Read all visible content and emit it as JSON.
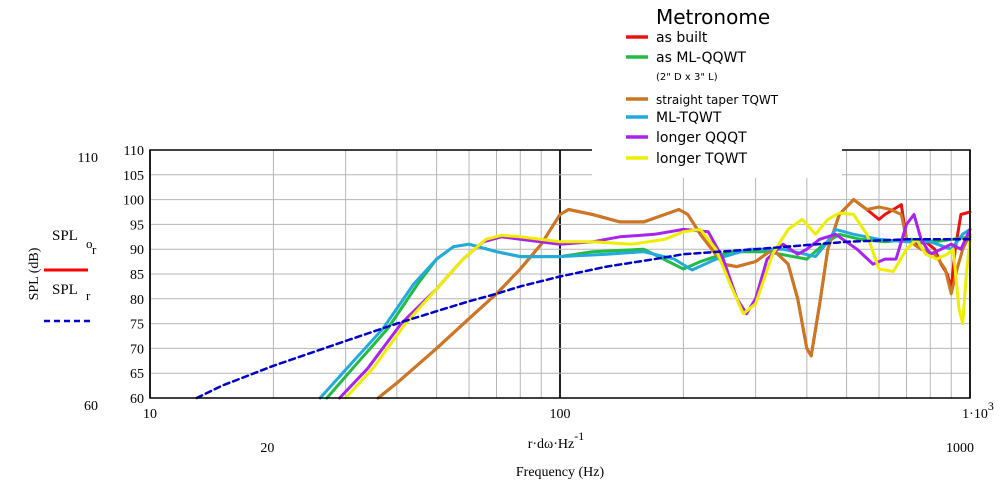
{
  "chart_data": {
    "type": "line",
    "title": "Metronome",
    "xlabel": "Frequency (Hz)",
    "xlabel_expr": "r·dω·Hz",
    "xlabel_exp": "-1",
    "ylabel": "SPL (dB)",
    "x_scale": "log",
    "xlim": [
      10,
      1000
    ],
    "ylim": [
      60,
      110
    ],
    "grid": true,
    "legend_position": "top-right",
    "x_ticks": [
      {
        "value": 10,
        "label": "10"
      },
      {
        "value": 100,
        "label": "100"
      },
      {
        "value": 1000,
        "label": "1·10",
        "exp": "3"
      }
    ],
    "x_secondary_ticks": [
      {
        "value": 20,
        "label": "20"
      },
      {
        "value": 1000,
        "label": "1000"
      }
    ],
    "y_ticks": [
      60,
      65,
      70,
      75,
      80,
      85,
      90,
      95,
      100,
      105,
      110
    ],
    "y_tick_labels": [
      "60",
      "65",
      "70",
      "75",
      "80",
      "85",
      "90",
      "95",
      "100",
      "105",
      "110"
    ],
    "y_outer_labels": [
      {
        "value": 110,
        "label": "110"
      },
      {
        "value": 60,
        "label": "60"
      }
    ],
    "left_legend": [
      {
        "base": "SPL",
        "sub": "o",
        "sub2": "r",
        "color": "#ff0000",
        "style": "solid"
      },
      {
        "base": "SPL",
        "sub": "r",
        "sub2": "",
        "color": "#0000cc",
        "style": "dashed"
      }
    ],
    "legend_note": "(2\" D x 3\" L)",
    "series": [
      {
        "name": "as built",
        "color": "#ee1111",
        "width": 3,
        "points": [
          [
            36,
            60
          ],
          [
            40,
            63
          ],
          [
            50,
            70
          ],
          [
            60,
            76
          ],
          [
            70,
            81
          ],
          [
            80,
            86
          ],
          [
            90,
            91
          ],
          [
            100,
            97
          ],
          [
            105,
            98
          ],
          [
            120,
            97
          ],
          [
            140,
            95.5
          ],
          [
            160,
            95.5
          ],
          [
            180,
            97
          ],
          [
            195,
            98
          ],
          [
            205,
            97
          ],
          [
            220,
            93
          ],
          [
            250,
            87
          ],
          [
            270,
            86.5
          ],
          [
            300,
            87.5
          ],
          [
            330,
            90
          ],
          [
            360,
            87
          ],
          [
            380,
            80
          ],
          [
            400,
            70
          ],
          [
            410,
            68.5
          ],
          [
            430,
            79
          ],
          [
            450,
            90
          ],
          [
            480,
            97
          ],
          [
            520,
            100
          ],
          [
            560,
            98
          ],
          [
            600,
            96
          ],
          [
            620,
            97
          ],
          [
            650,
            98
          ],
          [
            680,
            99
          ],
          [
            700,
            92
          ],
          [
            740,
            91
          ],
          [
            780,
            91.5
          ],
          [
            820,
            90
          ],
          [
            850,
            87
          ],
          [
            880,
            85
          ],
          [
            900,
            82
          ],
          [
            920,
            90
          ],
          [
            950,
            97
          ],
          [
            1000,
            97.5
          ]
        ]
      },
      {
        "name": "as ML-QQWT",
        "color": "#22bb44",
        "width": 3,
        "points": [
          [
            27,
            60
          ],
          [
            32,
            67
          ],
          [
            38,
            74
          ],
          [
            45,
            83
          ],
          [
            50,
            88
          ],
          [
            55,
            90.5
          ],
          [
            60,
            91
          ],
          [
            70,
            89.5
          ],
          [
            80,
            88.5
          ],
          [
            100,
            88.5
          ],
          [
            120,
            89.5
          ],
          [
            160,
            90
          ],
          [
            200,
            86
          ],
          [
            220,
            87.5
          ],
          [
            260,
            89.5
          ],
          [
            320,
            89.5
          ],
          [
            400,
            88
          ],
          [
            440,
            91
          ],
          [
            480,
            93
          ],
          [
            540,
            92
          ],
          [
            620,
            91.5
          ],
          [
            720,
            92
          ],
          [
            820,
            91.5
          ],
          [
            1000,
            92.5
          ]
        ]
      },
      {
        "name": "straight taper TQWT",
        "color": "#cc7722",
        "width": 3,
        "points": [
          [
            36,
            60
          ],
          [
            40,
            63
          ],
          [
            50,
            70
          ],
          [
            60,
            76
          ],
          [
            70,
            81
          ],
          [
            80,
            86
          ],
          [
            90,
            91
          ],
          [
            100,
            97
          ],
          [
            105,
            98
          ],
          [
            120,
            97
          ],
          [
            140,
            95.5
          ],
          [
            160,
            95.5
          ],
          [
            180,
            97
          ],
          [
            195,
            98
          ],
          [
            205,
            97
          ],
          [
            220,
            93
          ],
          [
            250,
            87
          ],
          [
            270,
            86.5
          ],
          [
            300,
            87.5
          ],
          [
            330,
            90
          ],
          [
            360,
            87
          ],
          [
            380,
            80
          ],
          [
            400,
            70
          ],
          [
            410,
            68.5
          ],
          [
            430,
            79
          ],
          [
            450,
            90
          ],
          [
            480,
            97
          ],
          [
            520,
            100
          ],
          [
            560,
            98
          ],
          [
            600,
            98.5
          ],
          [
            640,
            98
          ],
          [
            680,
            97
          ],
          [
            700,
            92
          ],
          [
            760,
            90
          ],
          [
            820,
            89
          ],
          [
            870,
            86
          ],
          [
            900,
            81
          ],
          [
            930,
            86
          ],
          [
            960,
            90
          ],
          [
            1000,
            93
          ]
        ]
      },
      {
        "name": "ML-TQWT",
        "color": "#22aadd",
        "width": 3,
        "points": [
          [
            26,
            60
          ],
          [
            31,
            67
          ],
          [
            37,
            74
          ],
          [
            44,
            83
          ],
          [
            50,
            88
          ],
          [
            55,
            90.5
          ],
          [
            60,
            91
          ],
          [
            70,
            89.5
          ],
          [
            80,
            88.5
          ],
          [
            100,
            88.5
          ],
          [
            130,
            89
          ],
          [
            160,
            89.5
          ],
          [
            190,
            88
          ],
          [
            210,
            85.8
          ],
          [
            240,
            88
          ],
          [
            290,
            90
          ],
          [
            350,
            90
          ],
          [
            420,
            88.5
          ],
          [
            445,
            91
          ],
          [
            470,
            94
          ],
          [
            520,
            93
          ],
          [
            600,
            92
          ],
          [
            700,
            91.5
          ],
          [
            800,
            91.5
          ],
          [
            900,
            90
          ],
          [
            960,
            93
          ],
          [
            1000,
            94
          ]
        ]
      },
      {
        "name": "longer QQQT",
        "color": "#aa22ee",
        "width": 3,
        "points": [
          [
            29,
            60
          ],
          [
            34,
            66
          ],
          [
            41,
            75
          ],
          [
            50,
            82
          ],
          [
            58,
            88
          ],
          [
            65,
            91.5
          ],
          [
            72,
            92.5
          ],
          [
            80,
            92
          ],
          [
            100,
            91
          ],
          [
            120,
            91.5
          ],
          [
            140,
            92.5
          ],
          [
            170,
            93
          ],
          [
            200,
            94
          ],
          [
            230,
            93.5
          ],
          [
            250,
            88
          ],
          [
            270,
            80
          ],
          [
            285,
            77
          ],
          [
            300,
            80
          ],
          [
            320,
            88
          ],
          [
            350,
            91
          ],
          [
            380,
            89
          ],
          [
            400,
            90
          ],
          [
            430,
            92
          ],
          [
            470,
            93
          ],
          [
            530,
            90
          ],
          [
            580,
            87
          ],
          [
            620,
            88
          ],
          [
            660,
            88
          ],
          [
            700,
            95
          ],
          [
            730,
            97
          ],
          [
            760,
            92
          ],
          [
            800,
            89
          ],
          [
            850,
            90
          ],
          [
            900,
            91
          ],
          [
            950,
            90
          ],
          [
            1000,
            94
          ]
        ]
      },
      {
        "name": "longer TQWT",
        "color": "#eeee00",
        "width": 3,
        "points": [
          [
            30,
            60
          ],
          [
            35,
            66
          ],
          [
            42,
            75
          ],
          [
            50,
            82
          ],
          [
            58,
            88
          ],
          [
            66,
            92
          ],
          [
            72,
            92.8
          ],
          [
            80,
            92.5
          ],
          [
            100,
            91.5
          ],
          [
            120,
            91.5
          ],
          [
            150,
            91
          ],
          [
            180,
            92
          ],
          [
            200,
            93.5
          ],
          [
            220,
            94
          ],
          [
            240,
            90
          ],
          [
            260,
            83
          ],
          [
            280,
            77
          ],
          [
            300,
            79
          ],
          [
            330,
            89
          ],
          [
            360,
            94
          ],
          [
            390,
            96
          ],
          [
            420,
            93
          ],
          [
            450,
            96
          ],
          [
            480,
            97.3
          ],
          [
            520,
            97
          ],
          [
            560,
            93
          ],
          [
            600,
            86
          ],
          [
            650,
            85.5
          ],
          [
            700,
            90
          ],
          [
            740,
            92
          ],
          [
            780,
            89
          ],
          [
            830,
            88
          ],
          [
            880,
            89
          ],
          [
            910,
            90
          ],
          [
            940,
            78
          ],
          [
            960,
            75
          ],
          [
            980,
            85
          ],
          [
            1000,
            92
          ]
        ]
      },
      {
        "name": "",
        "color": "#0000cc",
        "width": 2.5,
        "dashed": true,
        "points": [
          [
            13,
            60
          ],
          [
            15,
            62.5
          ],
          [
            20,
            66.5
          ],
          [
            30,
            71.5
          ],
          [
            40,
            75
          ],
          [
            50,
            77.5
          ],
          [
            60,
            79.5
          ],
          [
            70,
            81
          ],
          [
            80,
            82.5
          ],
          [
            100,
            84.5
          ],
          [
            130,
            86.5
          ],
          [
            170,
            88
          ],
          [
            200,
            89
          ],
          [
            300,
            90
          ],
          [
            500,
            91.5
          ],
          [
            700,
            92
          ],
          [
            1000,
            92
          ]
        ]
      }
    ]
  }
}
